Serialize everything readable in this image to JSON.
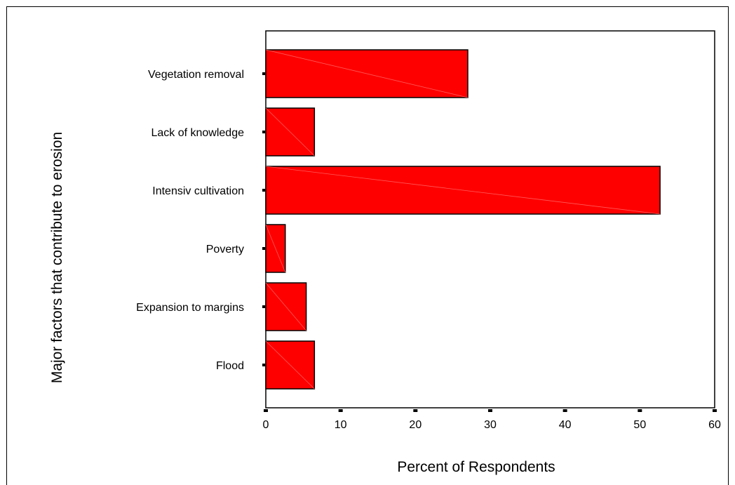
{
  "chart_data": {
    "type": "bar",
    "orientation": "horizontal",
    "categories": [
      "Vegetation removal",
      "Lack of knowledge",
      "Intensiv cultivation",
      "Poverty",
      "Expansion to margins",
      "Flood"
    ],
    "values": [
      27.0,
      6.5,
      52.7,
      2.6,
      5.4,
      6.5
    ],
    "xlabel": "Percent of Respondents",
    "ylabel": "Major factors that contribute to erosion",
    "xlim": [
      0,
      60
    ],
    "xticks": [
      "0",
      "10",
      "20",
      "30",
      "40",
      "50",
      "60"
    ],
    "grid": false,
    "bar_color": "#ff0000"
  }
}
